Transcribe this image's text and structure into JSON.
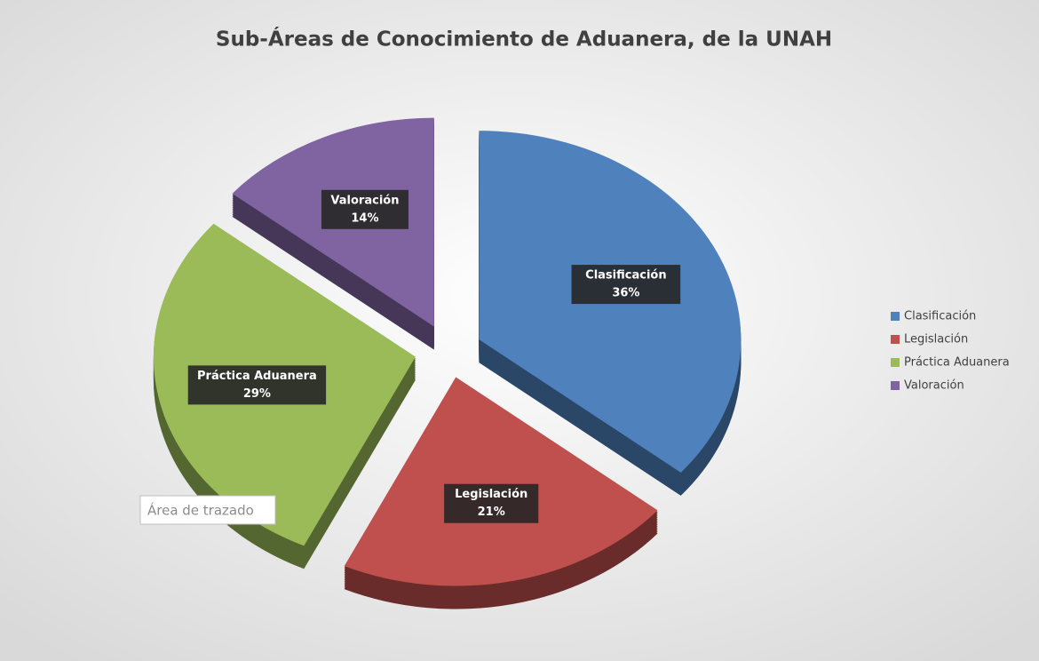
{
  "chart_data": {
    "type": "pie",
    "title": "Sub-Áreas de Conocimiento de Aduanera, de la UNAH",
    "categories": [
      "Clasificación",
      "Legislación",
      "Práctica Aduanera",
      "Valoración"
    ],
    "values": [
      36,
      21,
      29,
      14
    ],
    "value_labels": [
      "36%",
      "21%",
      "29%",
      "14%"
    ],
    "colors": [
      "#4f81bd",
      "#c0504d",
      "#9bbb59",
      "#8064a2"
    ],
    "legend": "right",
    "tooltip": "Área de trazado"
  }
}
